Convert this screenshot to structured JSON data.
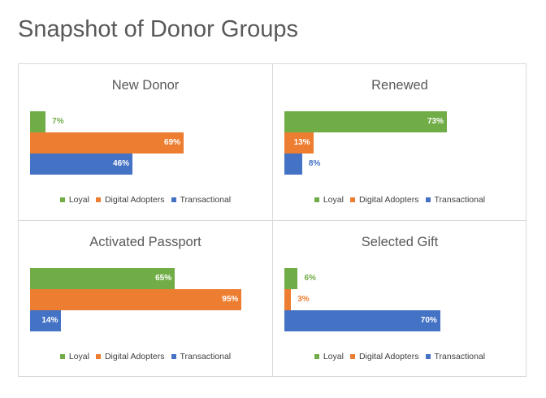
{
  "page": {
    "title": "Snapshot of Donor Groups"
  },
  "colors": {
    "loyal": "#70ad47",
    "digital": "#ed7d31",
    "transactional": "#4472c4"
  },
  "chart_data": [
    {
      "type": "bar",
      "orientation": "horizontal",
      "title": "New Donor",
      "categories": [
        "Loyal",
        "Digital Adopters",
        "Transactional"
      ],
      "values": [
        7,
        69,
        46
      ],
      "value_labels": [
        "7%",
        "69%",
        "46%"
      ],
      "unit": "%",
      "xlim": [
        0,
        100
      ],
      "legend": {
        "position": "bottom",
        "entries": [
          "Loyal",
          "Digital Adopters",
          "Transactional"
        ]
      }
    },
    {
      "type": "bar",
      "orientation": "horizontal",
      "title": "Renewed",
      "categories": [
        "Loyal",
        "Digital Adopters",
        "Transactional"
      ],
      "values": [
        73,
        13,
        8
      ],
      "value_labels": [
        "73%",
        "13%",
        "8%"
      ],
      "unit": "%",
      "xlim": [
        0,
        100
      ],
      "legend": {
        "position": "bottom",
        "entries": [
          "Loyal",
          "Digital Adopters",
          "Transactional"
        ]
      }
    },
    {
      "type": "bar",
      "orientation": "horizontal",
      "title": "Activated Passport",
      "categories": [
        "Loyal",
        "Digital Adopters",
        "Transactional"
      ],
      "values": [
        65,
        95,
        14
      ],
      "value_labels": [
        "65%",
        "95%",
        "14%"
      ],
      "unit": "%",
      "xlim": [
        0,
        100
      ],
      "legend": {
        "position": "bottom",
        "entries": [
          "Loyal",
          "Digital Adopters",
          "Transactional"
        ]
      }
    },
    {
      "type": "bar",
      "orientation": "horizontal",
      "title": "Selected Gift",
      "categories": [
        "Loyal",
        "Digital Adopters",
        "Transactional"
      ],
      "values": [
        6,
        3,
        70
      ],
      "value_labels": [
        "6%",
        "3%",
        "70%"
      ],
      "unit": "%",
      "xlim": [
        0,
        100
      ],
      "legend": {
        "position": "bottom",
        "entries": [
          "Loyal",
          "Digital Adopters",
          "Transactional"
        ]
      }
    }
  ]
}
